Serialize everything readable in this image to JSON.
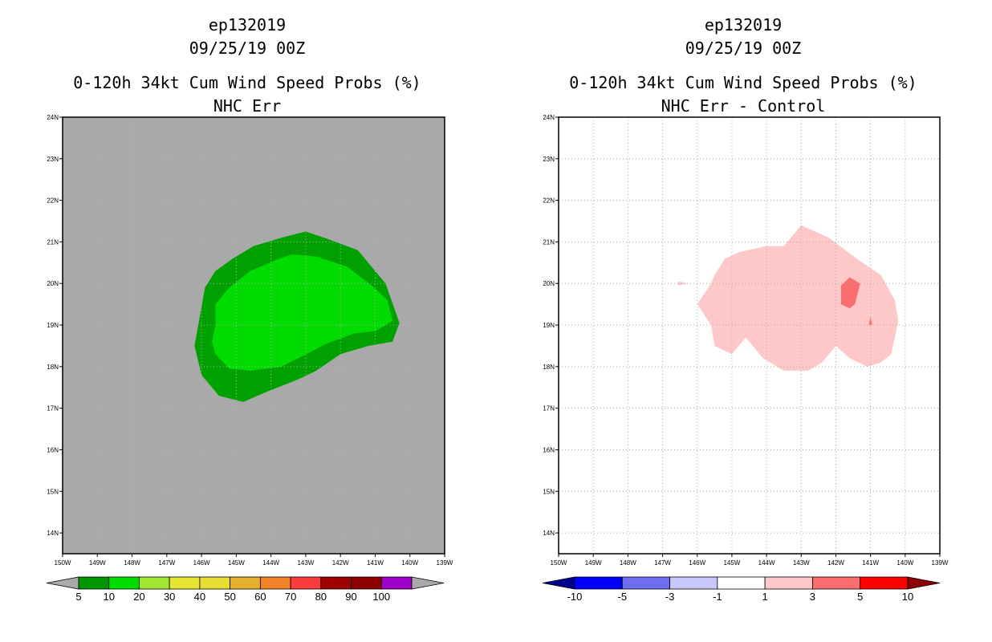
{
  "chart_data": [
    {
      "type": "contour-map",
      "panel": "left",
      "title_lines": [
        "ep132019",
        "09/25/19 00Z",
        "0-120h 34kt Cum Wind Speed Probs (%)",
        "NHC Err"
      ],
      "xlim": [
        -150,
        -139
      ],
      "ylim": [
        13.5,
        24
      ],
      "x_ticks": [
        {
          "value": -150,
          "label": "150W"
        },
        {
          "value": -149,
          "label": "149W"
        },
        {
          "value": -148,
          "label": "148W"
        },
        {
          "value": -147,
          "label": "147W"
        },
        {
          "value": -146,
          "label": "146W"
        },
        {
          "value": -145,
          "label": "145W"
        },
        {
          "value": -144,
          "label": "144W"
        },
        {
          "value": -143,
          "label": "143W"
        },
        {
          "value": -142,
          "label": "142W"
        },
        {
          "value": -141,
          "label": "141W"
        },
        {
          "value": -140,
          "label": "140W"
        },
        {
          "value": -139,
          "label": "139W"
        }
      ],
      "y_ticks": [
        {
          "value": 14,
          "label": "14N"
        },
        {
          "value": 15,
          "label": "15N"
        },
        {
          "value": 16,
          "label": "16N"
        },
        {
          "value": 17,
          "label": "17N"
        },
        {
          "value": 18,
          "label": "18N"
        },
        {
          "value": 19,
          "label": "19N"
        },
        {
          "value": 20,
          "label": "20N"
        },
        {
          "value": 21,
          "label": "21N"
        },
        {
          "value": 22,
          "label": "22N"
        },
        {
          "value": 23,
          "label": "23N"
        },
        {
          "value": 24,
          "label": "24N"
        }
      ],
      "background_color": "#a9a9a9",
      "grid": true,
      "grid_color": "#b8b8b8",
      "contours": [
        {
          "level": "5-10",
          "color": "#00a000",
          "points": [
            [
              -146.2,
              18.5
            ],
            [
              -145.9,
              19.9
            ],
            [
              -145.6,
              20.3
            ],
            [
              -145.1,
              20.6
            ],
            [
              -144.5,
              20.9
            ],
            [
              -143.7,
              21.1
            ],
            [
              -143.0,
              21.25
            ],
            [
              -142.3,
              21.05
            ],
            [
              -141.5,
              20.8
            ],
            [
              -140.7,
              20.0
            ],
            [
              -140.3,
              19.05
            ],
            [
              -140.5,
              18.6
            ],
            [
              -141.2,
              18.5
            ],
            [
              -142.0,
              18.3
            ],
            [
              -142.7,
              17.9
            ],
            [
              -143.2,
              17.7
            ],
            [
              -144.1,
              17.4
            ],
            [
              -144.8,
              17.15
            ],
            [
              -145.5,
              17.3
            ],
            [
              -146.0,
              17.8
            ]
          ]
        },
        {
          "level": "10-20",
          "color": "#00dc00",
          "points": [
            [
              -145.7,
              18.6
            ],
            [
              -145.6,
              19.0
            ],
            [
              -145.6,
              19.5
            ],
            [
              -145.2,
              19.9
            ],
            [
              -144.6,
              20.3
            ],
            [
              -143.9,
              20.55
            ],
            [
              -143.4,
              20.7
            ],
            [
              -142.7,
              20.65
            ],
            [
              -141.8,
              20.4
            ],
            [
              -141.1,
              19.95
            ],
            [
              -140.65,
              19.6
            ],
            [
              -140.5,
              19.1
            ],
            [
              -141.0,
              18.85
            ],
            [
              -141.6,
              18.8
            ],
            [
              -142.4,
              18.55
            ],
            [
              -143.1,
              18.25
            ],
            [
              -143.7,
              18.0
            ],
            [
              -144.6,
              17.9
            ],
            [
              -145.2,
              17.95
            ],
            [
              -145.6,
              18.3
            ]
          ]
        }
      ],
      "colorbar": {
        "labels": [
          "5",
          "10",
          "20",
          "30",
          "40",
          "50",
          "60",
          "70",
          "80",
          "90",
          "100"
        ],
        "colors": [
          "#009600",
          "#00dc00",
          "#a0e632",
          "#e6e632",
          "#e6dc32",
          "#e6af2d",
          "#f08228",
          "#fa3c3c",
          "#a00000",
          "#8c0000",
          "#a000c8"
        ],
        "end_left_color": "#a9a9a9",
        "end_right_color": "#a9a9a9"
      }
    },
    {
      "type": "contour-map",
      "panel": "right",
      "title_lines": [
        "ep132019",
        "09/25/19 00Z",
        "0-120h 34kt Cum Wind Speed Probs (%)",
        "NHC Err - Control"
      ],
      "xlim": [
        -150,
        -139
      ],
      "ylim": [
        13.5,
        24
      ],
      "x_ticks": [
        {
          "value": -150,
          "label": "150W"
        },
        {
          "value": -149,
          "label": "149W"
        },
        {
          "value": -148,
          "label": "148W"
        },
        {
          "value": -147,
          "label": "147W"
        },
        {
          "value": -146,
          "label": "146W"
        },
        {
          "value": -145,
          "label": "145W"
        },
        {
          "value": -144,
          "label": "144W"
        },
        {
          "value": -143,
          "label": "143W"
        },
        {
          "value": -142,
          "label": "142W"
        },
        {
          "value": -141,
          "label": "141W"
        },
        {
          "value": -140,
          "label": "140W"
        },
        {
          "value": -139,
          "label": "139W"
        }
      ],
      "y_ticks": [
        {
          "value": 14,
          "label": "14N"
        },
        {
          "value": 15,
          "label": "15N"
        },
        {
          "value": 16,
          "label": "16N"
        },
        {
          "value": 17,
          "label": "17N"
        },
        {
          "value": 18,
          "label": "18N"
        },
        {
          "value": 19,
          "label": "19N"
        },
        {
          "value": 20,
          "label": "20N"
        },
        {
          "value": 21,
          "label": "21N"
        },
        {
          "value": 22,
          "label": "22N"
        },
        {
          "value": 23,
          "label": "23N"
        },
        {
          "value": 24,
          "label": "24N"
        }
      ],
      "background_color": "#ffffff",
      "grid": true,
      "grid_color": "#aaaaaa",
      "contours": [
        {
          "level": "1-3",
          "color": "#ffc8c8",
          "points": [
            [
              -146.0,
              19.5
            ],
            [
              -145.6,
              20.0
            ],
            [
              -145.5,
              20.2
            ],
            [
              -145.2,
              20.6
            ],
            [
              -144.8,
              20.75
            ],
            [
              -144.0,
              20.9
            ],
            [
              -143.5,
              20.9
            ],
            [
              -143.0,
              21.4
            ],
            [
              -142.2,
              21.1
            ],
            [
              -141.4,
              20.6
            ],
            [
              -140.7,
              20.2
            ],
            [
              -140.3,
              19.6
            ],
            [
              -140.2,
              19.1
            ],
            [
              -140.4,
              18.3
            ],
            [
              -140.7,
              18.1
            ],
            [
              -141.1,
              18.0
            ],
            [
              -141.6,
              18.2
            ],
            [
              -142.0,
              18.5
            ],
            [
              -142.4,
              18.1
            ],
            [
              -142.8,
              17.9
            ],
            [
              -143.5,
              17.9
            ],
            [
              -144.1,
              18.2
            ],
            [
              -144.6,
              18.7
            ],
            [
              -145.0,
              18.3
            ],
            [
              -145.5,
              18.5
            ],
            [
              -145.6,
              19.0
            ]
          ]
        },
        {
          "level": "1-3",
          "color": "#ffc8c8",
          "points": [
            [
              -146.55,
              20.05
            ],
            [
              -146.25,
              20.0
            ],
            [
              -146.55,
              19.95
            ]
          ]
        },
        {
          "level": "3-5",
          "color": "#fa6e6e",
          "points": [
            [
              -141.85,
              19.5
            ],
            [
              -141.85,
              19.95
            ],
            [
              -141.6,
              20.15
            ],
            [
              -141.3,
              20.0
            ],
            [
              -141.45,
              19.5
            ],
            [
              -141.6,
              19.4
            ]
          ]
        },
        {
          "level": "3-5",
          "color": "#fa6e6e",
          "points": [
            [
              -141.05,
              19.0
            ],
            [
              -140.95,
              19.0
            ],
            [
              -141.0,
              19.2
            ]
          ]
        }
      ],
      "colorbar": {
        "labels": [
          "-10",
          "-5",
          "-3",
          "-1",
          "1",
          "3",
          "5",
          "10"
        ],
        "colors": [
          "#0000ff",
          "#6e6ef0",
          "#c8c8ff",
          "#ffffff",
          "#ffc8c8",
          "#fa6e6e",
          "#ff0000"
        ],
        "end_left_color": "#00008c",
        "end_right_color": "#8c0000"
      }
    }
  ]
}
